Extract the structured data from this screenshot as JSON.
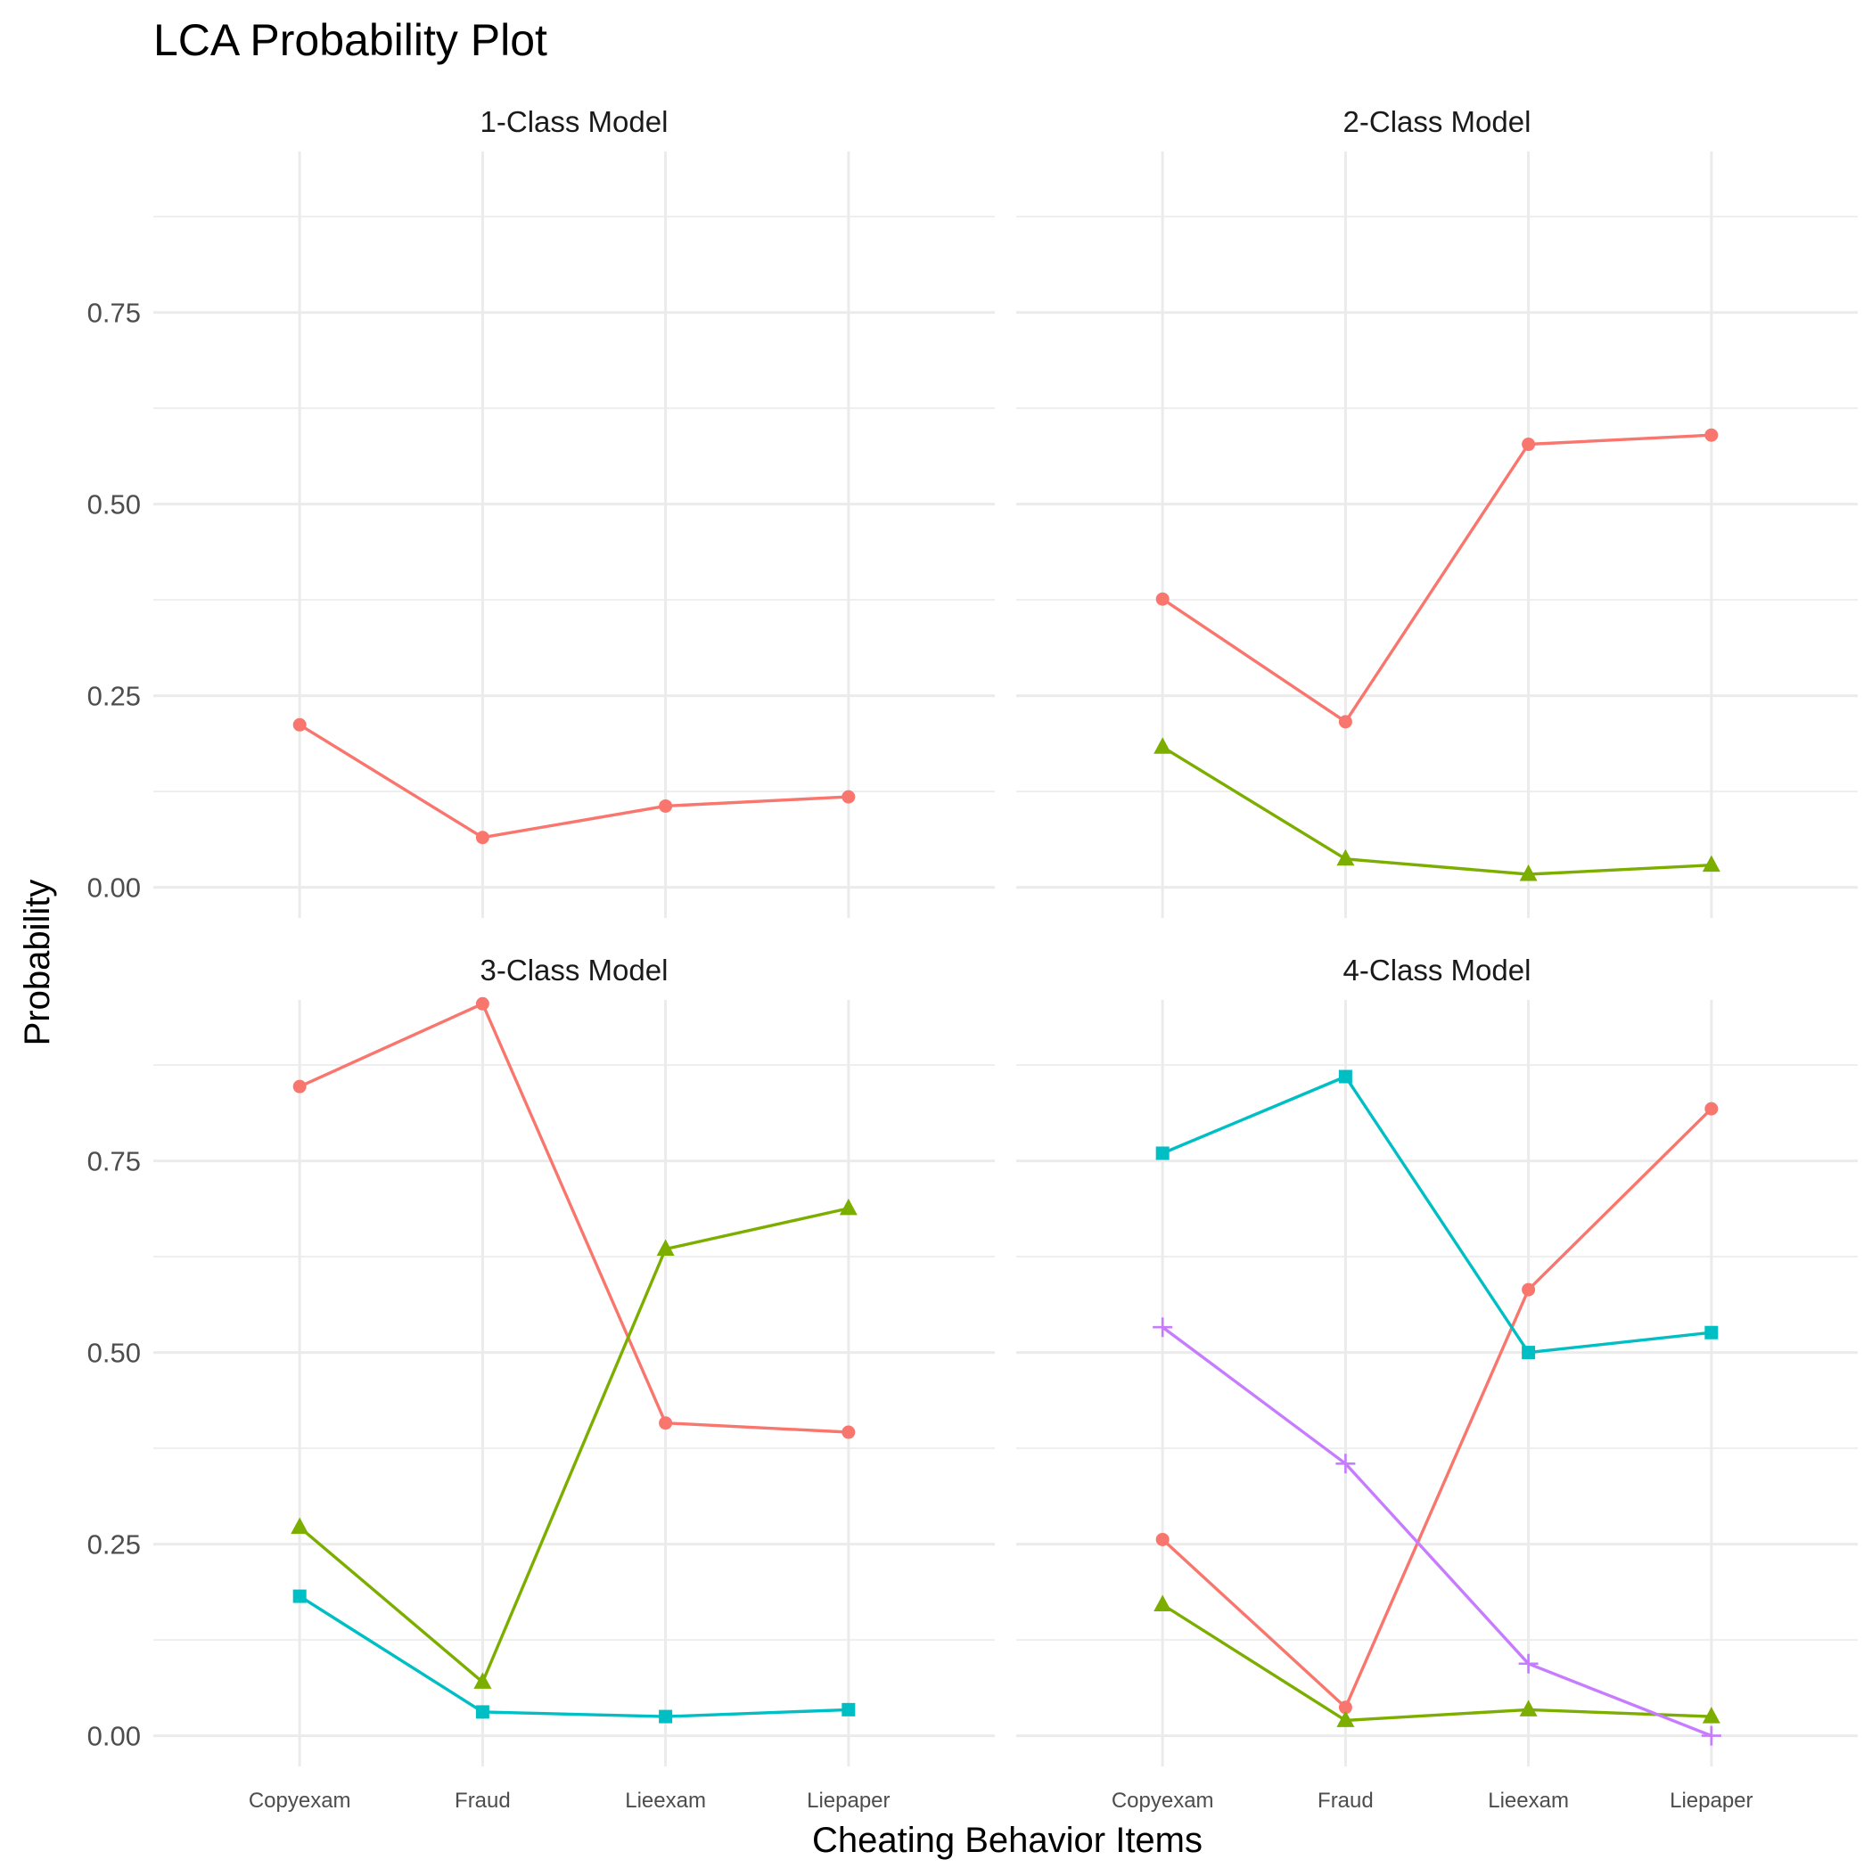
{
  "chart_data": {
    "type": "line",
    "title": "LCA Probability Plot",
    "xlabel": "Cheating Behavior Items",
    "ylabel": "Probability",
    "categories": [
      "Copyexam",
      "Fraud",
      "Lieexam",
      "Liepaper"
    ],
    "ylim": [
      -0.04,
      0.96
    ],
    "yticks": [
      0,
      0.25,
      0.5,
      0.75
    ],
    "ytick_labels": [
      "0.00",
      "0.25",
      "0.50",
      "0.75"
    ],
    "grid": true,
    "legend": "none",
    "colors": [
      "#F8766D",
      "#7CAE00",
      "#00BFC4",
      "#C77CFF"
    ],
    "markers": [
      "circle",
      "triangle",
      "square",
      "plus"
    ],
    "panels": [
      {
        "label": "1-Class Model",
        "series": [
          {
            "values": [
              0.212,
              0.065,
              0.106,
              0.118
            ]
          }
        ]
      },
      {
        "label": "2-Class Model",
        "series": [
          {
            "values": [
              0.376,
              0.216,
              0.578,
              0.59
            ]
          },
          {
            "values": [
              0.183,
              0.037,
              0.017,
              0.029
            ]
          }
        ]
      },
      {
        "label": "3-Class Model",
        "series": [
          {
            "values": [
              0.847,
              0.955,
              0.408,
              0.396
            ]
          },
          {
            "values": [
              0.272,
              0.07,
              0.635,
              0.688
            ]
          },
          {
            "values": [
              0.182,
              0.031,
              0.025,
              0.034
            ]
          }
        ]
      },
      {
        "label": "4-Class Model",
        "series": [
          {
            "values": [
              0.256,
              0.037,
              0.582,
              0.818
            ]
          },
          {
            "values": [
              0.171,
              0.02,
              0.034,
              0.025
            ]
          },
          {
            "values": [
              0.76,
              0.86,
              0.5,
              0.526
            ]
          },
          {
            "values": [
              0.533,
              0.355,
              0.094,
              0.0
            ]
          }
        ]
      }
    ]
  }
}
